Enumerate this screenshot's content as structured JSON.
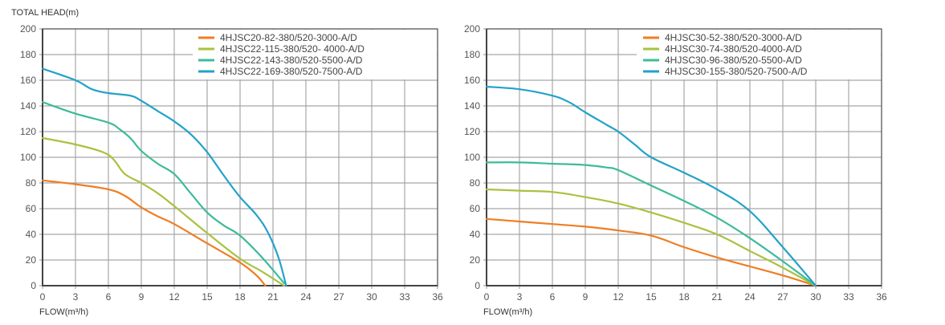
{
  "page": {
    "ylabel": "TOTAL HEAD(m)",
    "xlabel": "FLOW(m³/h)"
  },
  "colors": {
    "orange": "#f07d22",
    "yellowgreen": "#a9c23f",
    "teal": "#3dbb9a",
    "blue": "#23a2c9",
    "grid": "#a6a6a6",
    "axis": "#444444"
  },
  "chart_data": [
    {
      "type": "line",
      "title": "",
      "xlabel": "FLOW(m³/h)",
      "ylabel": "TOTAL HEAD(m)",
      "xlim": [
        0,
        36
      ],
      "ylim": [
        0,
        200
      ],
      "xticks": [
        0,
        3,
        6,
        9,
        12,
        15,
        18,
        21,
        24,
        27,
        30,
        33,
        36
      ],
      "yticks": [
        0,
        20,
        40,
        60,
        80,
        100,
        120,
        140,
        160,
        180,
        200
      ],
      "grid": true,
      "legend_position": "upper right",
      "series": [
        {
          "name": "4HJSC20-82-380/520-3000-A/D",
          "color": "#f07d22",
          "x": [
            0,
            3,
            6,
            7.5,
            9,
            10.5,
            12,
            15,
            18,
            19.5,
            20.3
          ],
          "y": [
            82,
            79,
            75,
            70,
            61,
            54,
            48,
            33,
            18,
            8,
            0
          ]
        },
        {
          "name": "4HJSC22-115-380/520- 4000-A/D",
          "color": "#a9c23f",
          "x": [
            0,
            3,
            5.5,
            6.5,
            7.5,
            9,
            10.5,
            12,
            15,
            18,
            20,
            22
          ],
          "y": [
            115,
            110,
            104,
            98,
            87,
            80,
            72,
            62,
            41,
            21,
            11,
            0
          ]
        },
        {
          "name": "4HJSC22-143-380/520-5500-A/D",
          "color": "#3dbb9a",
          "x": [
            0,
            3,
            6,
            7,
            8,
            9,
            10.5,
            12,
            13.5,
            15,
            16.5,
            18,
            20,
            22
          ],
          "y": [
            143,
            134,
            127,
            122,
            115,
            105,
            95,
            87,
            72,
            57,
            47,
            39,
            22,
            2
          ]
        },
        {
          "name": "4HJSC22-169-380/520-7500-A/D",
          "color": "#23a2c9",
          "x": [
            0,
            3,
            4.5,
            6,
            8,
            9,
            10.5,
            12,
            13.5,
            15,
            16.5,
            18,
            19.5,
            20.5,
            21.5,
            22.2
          ],
          "y": [
            169,
            160,
            153,
            150,
            148,
            144,
            136,
            128,
            118,
            104,
            86,
            69,
            55,
            42,
            22,
            0
          ]
        }
      ]
    },
    {
      "type": "line",
      "title": "",
      "xlabel": "FLOW(m³/h)",
      "ylabel": "",
      "xlim": [
        0,
        36
      ],
      "ylim": [
        0,
        200
      ],
      "xticks": [
        0,
        3,
        6,
        9,
        12,
        15,
        18,
        21,
        24,
        27,
        30,
        33,
        36
      ],
      "yticks": [
        0,
        20,
        40,
        60,
        80,
        100,
        120,
        140,
        160,
        180,
        200
      ],
      "grid": true,
      "legend_position": "upper right",
      "series": [
        {
          "name": "4HJSC30-52-380/520-3000-A/D",
          "color": "#f07d22",
          "x": [
            0,
            3,
            6,
            9,
            12,
            15,
            18,
            21,
            24,
            27,
            30
          ],
          "y": [
            52,
            50,
            48,
            46,
            43,
            39,
            30,
            22,
            15,
            8,
            0
          ]
        },
        {
          "name": "4HJSC30-74-380/520-4000-A/D",
          "color": "#a9c23f",
          "x": [
            0,
            3,
            6,
            9,
            12,
            15,
            18,
            21,
            24,
            27,
            30
          ],
          "y": [
            75,
            74,
            73,
            69,
            64,
            57,
            49,
            40,
            27,
            14,
            0
          ]
        },
        {
          "name": "4HJSC30-96-380/520-5500-A/D",
          "color": "#3dbb9a",
          "x": [
            0,
            3,
            6,
            9,
            11,
            12,
            15,
            18,
            21,
            24,
            27,
            30
          ],
          "y": [
            96,
            96,
            95,
            94,
            92,
            90,
            78,
            66,
            53,
            37,
            19,
            0
          ]
        },
        {
          "name": "4HJSC30-155-380/520-7500-A/D",
          "color": "#23a2c9",
          "x": [
            0,
            3,
            6,
            7.5,
            9,
            11,
            12,
            13.5,
            15,
            18,
            21,
            24,
            27,
            30
          ],
          "y": [
            155,
            153,
            148,
            143,
            135,
            125,
            120,
            110,
            100,
            88,
            75,
            58,
            30,
            0
          ]
        }
      ]
    }
  ]
}
